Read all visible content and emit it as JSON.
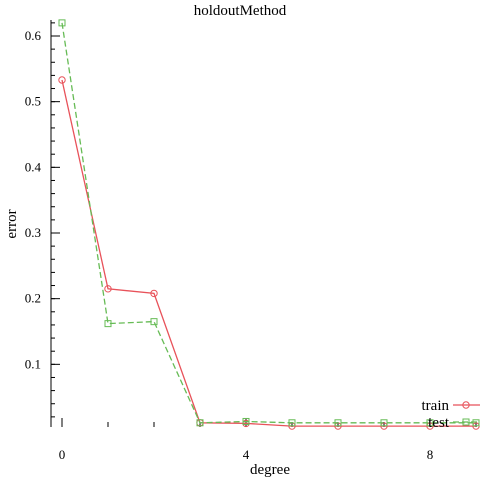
{
  "chart_data": {
    "type": "line",
    "title": "holdoutMethod",
    "xlabel": "degree",
    "ylabel": "error",
    "xlim": [
      -0.3,
      9.0
    ],
    "ylim": [
      0.0,
      0.625
    ],
    "xticks": [
      0,
      4,
      8
    ],
    "yticks": [
      0.1,
      0.2,
      0.3,
      0.4,
      0.5,
      0.6
    ],
    "x_minor_step": 1,
    "y_minor_step": 0.02,
    "grid": false,
    "legend_position": "bottom-right",
    "series": [
      {
        "name": "train",
        "color": "#e8525a",
        "line_style": "solid",
        "marker": "circle",
        "x": [
          0,
          1,
          2,
          3,
          4,
          5,
          6,
          7,
          8,
          9
        ],
        "y": [
          0.533,
          0.215,
          0.208,
          0.011,
          0.01,
          0.006,
          0.006,
          0.006,
          0.006,
          0.006
        ]
      },
      {
        "name": "test",
        "color": "#66bb55",
        "line_style": "dashed",
        "marker": "square",
        "x": [
          0,
          1,
          2,
          3,
          4,
          5,
          6,
          7,
          8,
          9
        ],
        "y": [
          0.62,
          0.162,
          0.165,
          0.011,
          0.013,
          0.011,
          0.011,
          0.011,
          0.011,
          0.011
        ]
      }
    ]
  }
}
